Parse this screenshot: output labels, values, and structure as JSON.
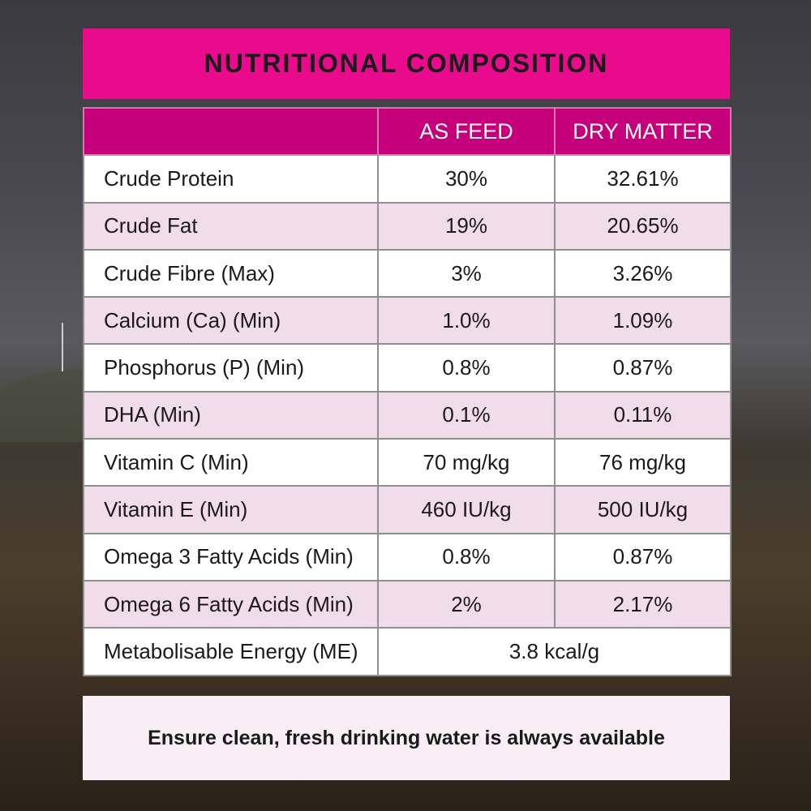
{
  "title": "NUTRITIONAL COMPOSITION",
  "columns": [
    "",
    "AS FEED",
    "DRY MATTER"
  ],
  "rows": [
    {
      "name": "Crude Protein",
      "as_feed": "30%",
      "dry_matter": "32.61%"
    },
    {
      "name": "Crude Fat",
      "as_feed": "19%",
      "dry_matter": "20.65%"
    },
    {
      "name": "Crude Fibre (Max)",
      "as_feed": "3%",
      "dry_matter": "3.26%"
    },
    {
      "name": "Calcium (Ca) (Min)",
      "as_feed": "1.0%",
      "dry_matter": "1.09%"
    },
    {
      "name": "Phosphorus (P) (Min)",
      "as_feed": "0.8%",
      "dry_matter": "0.87%"
    },
    {
      "name": "DHA (Min)",
      "as_feed": "0.1%",
      "dry_matter": "0.11%"
    },
    {
      "name": "Vitamin C (Min)",
      "as_feed": "70 mg/kg",
      "dry_matter": "76 mg/kg"
    },
    {
      "name": "Vitamin E (Min)",
      "as_feed": "460 IU/kg",
      "dry_matter": "500 IU/kg"
    },
    {
      "name": "Omega 3 Fatty Acids (Min)",
      "as_feed": "0.8%",
      "dry_matter": "0.87%"
    },
    {
      "name": "Omega 6 Fatty Acids (Min)",
      "as_feed": "2%",
      "dry_matter": "2.17%"
    }
  ],
  "energy": {
    "name": "Metabolisable Energy (ME)",
    "value": "3.8 kcal/g"
  },
  "footer": "Ensure clean, fresh drinking water is always available",
  "colors": {
    "title_bg": "#ea0a8c",
    "header_bg": "#c5007a",
    "row_alt": "#f1dcea"
  }
}
